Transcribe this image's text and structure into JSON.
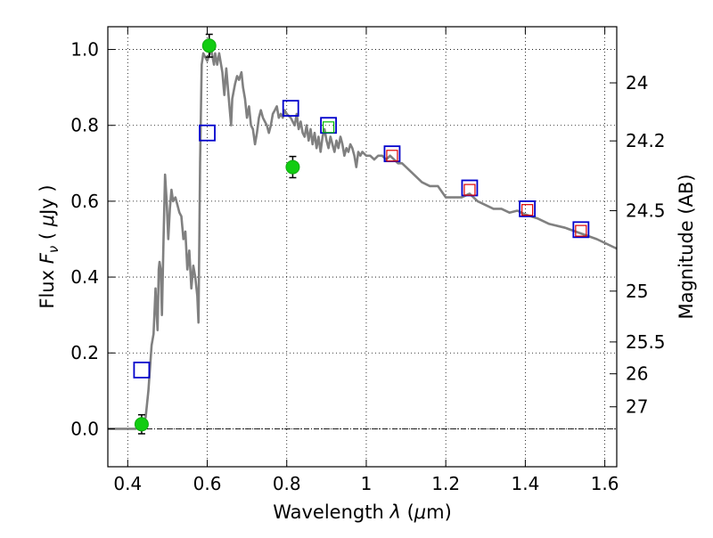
{
  "chart_data": {
    "type": "scatter",
    "xlabel": "Wavelength  λ (μm)",
    "ylabel": "Flux  F_ν  ( μJy )",
    "ylabel_parts": {
      "pre": "Flux  ",
      "var": "F",
      "sub": "ν",
      "paren_open": "  ( ",
      "mu": "μ",
      "unit": "Jy",
      "paren_close": " )"
    },
    "xlabel_parts": {
      "pre": "Wavelength  ",
      "var": "λ",
      "paren": " (",
      "mu": "μ",
      "unit": "m)"
    },
    "y2label": "Magnitude (AB)",
    "xlim": [
      0.35,
      1.63
    ],
    "ylim": [
      -0.1,
      1.06
    ],
    "x_ticks": [
      0.4,
      0.6,
      0.8,
      1.0,
      1.2,
      1.4,
      1.6
    ],
    "x_tick_labels": [
      "0.4",
      "0.6",
      "0.8",
      "1",
      "1.2",
      "1.4",
      "1.6"
    ],
    "y_ticks": [
      0.0,
      0.2,
      0.4,
      0.6,
      0.8,
      1.0
    ],
    "y_tick_labels": [
      "0.0",
      "0.2",
      "0.4",
      "0.6",
      "0.8",
      "1.0"
    ],
    "mag_ticks": [
      {
        "label": "24",
        "flux": 0.912
      },
      {
        "label": "24.2",
        "flux": 0.759
      },
      {
        "label": "24.5",
        "flux": 0.575
      },
      {
        "label": "25",
        "flux": 0.363
      },
      {
        "label": "25.5",
        "flux": 0.229
      },
      {
        "label": "26",
        "flux": 0.145
      },
      {
        "label": "27",
        "flux": 0.058
      }
    ],
    "grid": true,
    "zero_line": true,
    "series": [
      {
        "kind": "model_sed",
        "color": "#808080",
        "points": [
          [
            0.35,
            0.0
          ],
          [
            0.42,
            0.0
          ],
          [
            0.435,
            0.01
          ],
          [
            0.445,
            0.03
          ],
          [
            0.452,
            0.1
          ],
          [
            0.46,
            0.22
          ],
          [
            0.465,
            0.25
          ],
          [
            0.468,
            0.32
          ],
          [
            0.47,
            0.37
          ],
          [
            0.473,
            0.3
          ],
          [
            0.475,
            0.26
          ],
          [
            0.478,
            0.42
          ],
          [
            0.48,
            0.44
          ],
          [
            0.483,
            0.42
          ],
          [
            0.486,
            0.3
          ],
          [
            0.49,
            0.5
          ],
          [
            0.494,
            0.67
          ],
          [
            0.498,
            0.6
          ],
          [
            0.502,
            0.5
          ],
          [
            0.506,
            0.58
          ],
          [
            0.51,
            0.63
          ],
          [
            0.514,
            0.6
          ],
          [
            0.52,
            0.61
          ],
          [
            0.525,
            0.59
          ],
          [
            0.53,
            0.57
          ],
          [
            0.535,
            0.56
          ],
          [
            0.54,
            0.5
          ],
          [
            0.545,
            0.52
          ],
          [
            0.55,
            0.42
          ],
          [
            0.555,
            0.47
          ],
          [
            0.56,
            0.37
          ],
          [
            0.565,
            0.43
          ],
          [
            0.57,
            0.4
          ],
          [
            0.575,
            0.35
          ],
          [
            0.578,
            0.28
          ],
          [
            0.582,
            0.7
          ],
          [
            0.586,
            0.96
          ],
          [
            0.59,
            0.99
          ],
          [
            0.6,
            0.97
          ],
          [
            0.61,
            1.0
          ],
          [
            0.617,
            0.96
          ],
          [
            0.62,
            0.99
          ],
          [
            0.625,
            0.96
          ],
          [
            0.63,
            0.99
          ],
          [
            0.638,
            0.94
          ],
          [
            0.643,
            0.88
          ],
          [
            0.648,
            0.95
          ],
          [
            0.655,
            0.86
          ],
          [
            0.66,
            0.8
          ],
          [
            0.663,
            0.87
          ],
          [
            0.67,
            0.91
          ],
          [
            0.675,
            0.93
          ],
          [
            0.68,
            0.92
          ],
          [
            0.686,
            0.94
          ],
          [
            0.69,
            0.9
          ],
          [
            0.695,
            0.87
          ],
          [
            0.7,
            0.82
          ],
          [
            0.705,
            0.85
          ],
          [
            0.71,
            0.8
          ],
          [
            0.715,
            0.79
          ],
          [
            0.72,
            0.75
          ],
          [
            0.725,
            0.78
          ],
          [
            0.73,
            0.82
          ],
          [
            0.735,
            0.84
          ],
          [
            0.74,
            0.82
          ],
          [
            0.745,
            0.81
          ],
          [
            0.75,
            0.8
          ],
          [
            0.755,
            0.78
          ],
          [
            0.76,
            0.8
          ],
          [
            0.765,
            0.83
          ],
          [
            0.77,
            0.84
          ],
          [
            0.775,
            0.85
          ],
          [
            0.78,
            0.82
          ],
          [
            0.785,
            0.83
          ],
          [
            0.79,
            0.82
          ],
          [
            0.795,
            0.84
          ],
          [
            0.8,
            0.83
          ],
          [
            0.81,
            0.82
          ],
          [
            0.815,
            0.81
          ],
          [
            0.82,
            0.8
          ],
          [
            0.825,
            0.83
          ],
          [
            0.83,
            0.79
          ],
          [
            0.835,
            0.81
          ],
          [
            0.84,
            0.78
          ],
          [
            0.845,
            0.77
          ],
          [
            0.85,
            0.8
          ],
          [
            0.855,
            0.76
          ],
          [
            0.86,
            0.79
          ],
          [
            0.865,
            0.75
          ],
          [
            0.87,
            0.78
          ],
          [
            0.875,
            0.74
          ],
          [
            0.88,
            0.77
          ],
          [
            0.885,
            0.73
          ],
          [
            0.89,
            0.77
          ],
          [
            0.895,
            0.79
          ],
          [
            0.9,
            0.76
          ],
          [
            0.905,
            0.74
          ],
          [
            0.91,
            0.77
          ],
          [
            0.915,
            0.75
          ],
          [
            0.92,
            0.73
          ],
          [
            0.925,
            0.76
          ],
          [
            0.93,
            0.74
          ],
          [
            0.935,
            0.77
          ],
          [
            0.94,
            0.75
          ],
          [
            0.945,
            0.72
          ],
          [
            0.95,
            0.74
          ],
          [
            0.955,
            0.73
          ],
          [
            0.96,
            0.75
          ],
          [
            0.965,
            0.74
          ],
          [
            0.97,
            0.72
          ],
          [
            0.975,
            0.69
          ],
          [
            0.98,
            0.73
          ],
          [
            0.985,
            0.72
          ],
          [
            0.99,
            0.73
          ],
          [
            1.0,
            0.72
          ],
          [
            1.01,
            0.72
          ],
          [
            1.02,
            0.71
          ],
          [
            1.03,
            0.72
          ],
          [
            1.04,
            0.72
          ],
          [
            1.05,
            0.71
          ],
          [
            1.06,
            0.72
          ],
          [
            1.08,
            0.7
          ],
          [
            1.09,
            0.7
          ],
          [
            1.1,
            0.69
          ],
          [
            1.12,
            0.67
          ],
          [
            1.14,
            0.65
          ],
          [
            1.16,
            0.64
          ],
          [
            1.18,
            0.64
          ],
          [
            1.2,
            0.61
          ],
          [
            1.22,
            0.61
          ],
          [
            1.24,
            0.61
          ],
          [
            1.26,
            0.62
          ],
          [
            1.28,
            0.6
          ],
          [
            1.3,
            0.59
          ],
          [
            1.32,
            0.58
          ],
          [
            1.34,
            0.58
          ],
          [
            1.36,
            0.57
          ],
          [
            1.38,
            0.575
          ],
          [
            1.4,
            0.565
          ],
          [
            1.43,
            0.555
          ],
          [
            1.46,
            0.54
          ],
          [
            1.5,
            0.53
          ],
          [
            1.54,
            0.515
          ],
          [
            1.58,
            0.5
          ],
          [
            1.62,
            0.48
          ],
          [
            1.63,
            0.475
          ]
        ]
      },
      {
        "kind": "blue_squares",
        "color": "#0000cc",
        "points": [
          [
            0.435,
            0.155
          ],
          [
            0.6,
            0.78
          ],
          [
            0.81,
            0.845
          ],
          [
            0.905,
            0.8
          ],
          [
            1.065,
            0.725
          ],
          [
            1.26,
            0.635
          ],
          [
            1.405,
            0.58
          ],
          [
            1.54,
            0.525
          ]
        ]
      },
      {
        "kind": "red_squares",
        "color": "#dd0000",
        "points": [
          [
            1.065,
            0.72
          ],
          [
            1.26,
            0.63
          ],
          [
            1.405,
            0.577
          ],
          [
            1.54,
            0.522
          ]
        ]
      },
      {
        "kind": "green_square",
        "color": "#00bb00",
        "points": [
          [
            0.905,
            0.795
          ]
        ]
      },
      {
        "kind": "green_points_with_errors",
        "color": "#11cc11",
        "points": [
          {
            "x": 0.435,
            "y": 0.012,
            "err": 0.025
          },
          {
            "x": 0.605,
            "y": 1.01,
            "err": 0.03
          },
          {
            "x": 0.815,
            "y": 0.69,
            "err": 0.028
          }
        ]
      }
    ]
  }
}
